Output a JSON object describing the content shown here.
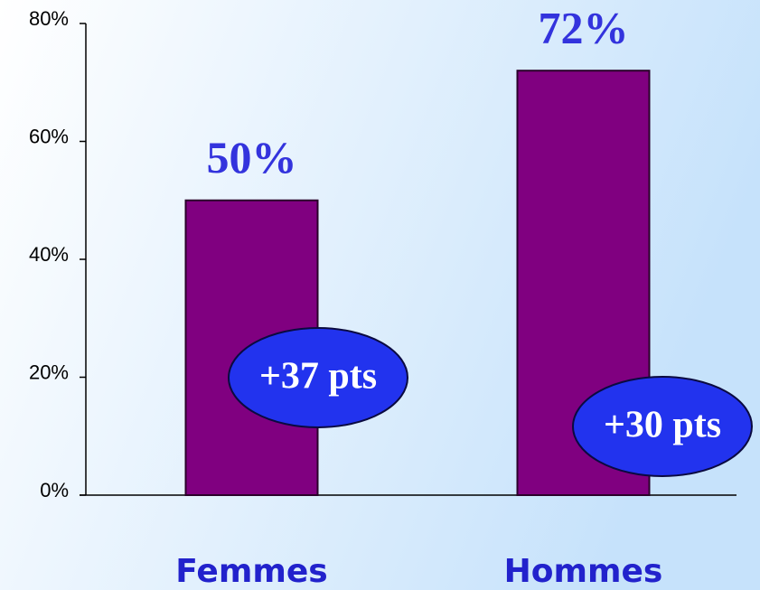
{
  "chart_data": {
    "type": "bar",
    "categories": [
      "Femmes",
      "Hommes"
    ],
    "values": [
      50,
      72
    ],
    "value_labels": [
      "50%",
      "72%"
    ],
    "color": "#800080",
    "ylim": [
      0,
      80
    ],
    "yticks": [
      {
        "value": 0,
        "label": "0%"
      },
      {
        "value": 20,
        "label": "20%"
      },
      {
        "value": 40,
        "label": "40%"
      },
      {
        "value": 60,
        "label": "60%"
      },
      {
        "value": 80,
        "label": "80%"
      }
    ],
    "annotations": [
      {
        "text": "+37 pts"
      },
      {
        "text": "+30 pts"
      }
    ]
  }
}
